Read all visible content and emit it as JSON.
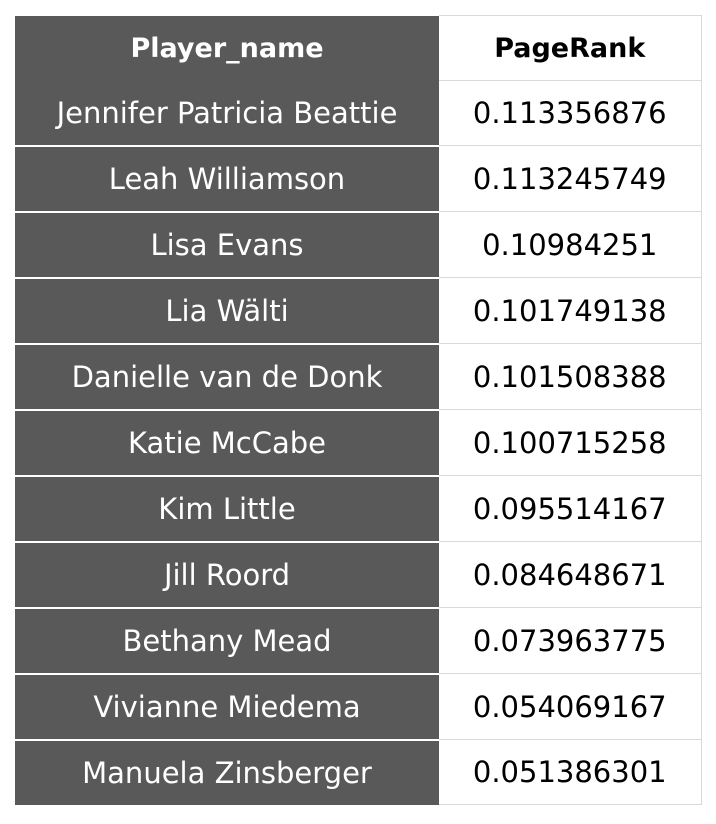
{
  "table": {
    "headers": [
      "Player_name",
      "PageRank"
    ],
    "rows": [
      [
        "Jennifer Patricia Beattie",
        "0.113356876"
      ],
      [
        "Leah Williamson",
        "0.113245749"
      ],
      [
        "Lisa Evans",
        "0.10984251"
      ],
      [
        "Lia Wälti",
        "0.101749138"
      ],
      [
        "Danielle van de Donk",
        "0.101508388"
      ],
      [
        "Katie McCabe",
        "0.100715258"
      ],
      [
        "Kim Little",
        "0.095514167"
      ],
      [
        "Jill Roord",
        "0.084648671"
      ],
      [
        "Bethany Mead",
        "0.073963775"
      ],
      [
        "Vivianne Miedema",
        "0.054069167"
      ],
      [
        "Manuela Zinsberger",
        "0.051386301"
      ]
    ]
  },
  "colors": {
    "name_column_bg": "#595959",
    "name_column_text": "#ffffff",
    "value_column_bg": "#ffffff",
    "value_column_text": "#000000"
  }
}
